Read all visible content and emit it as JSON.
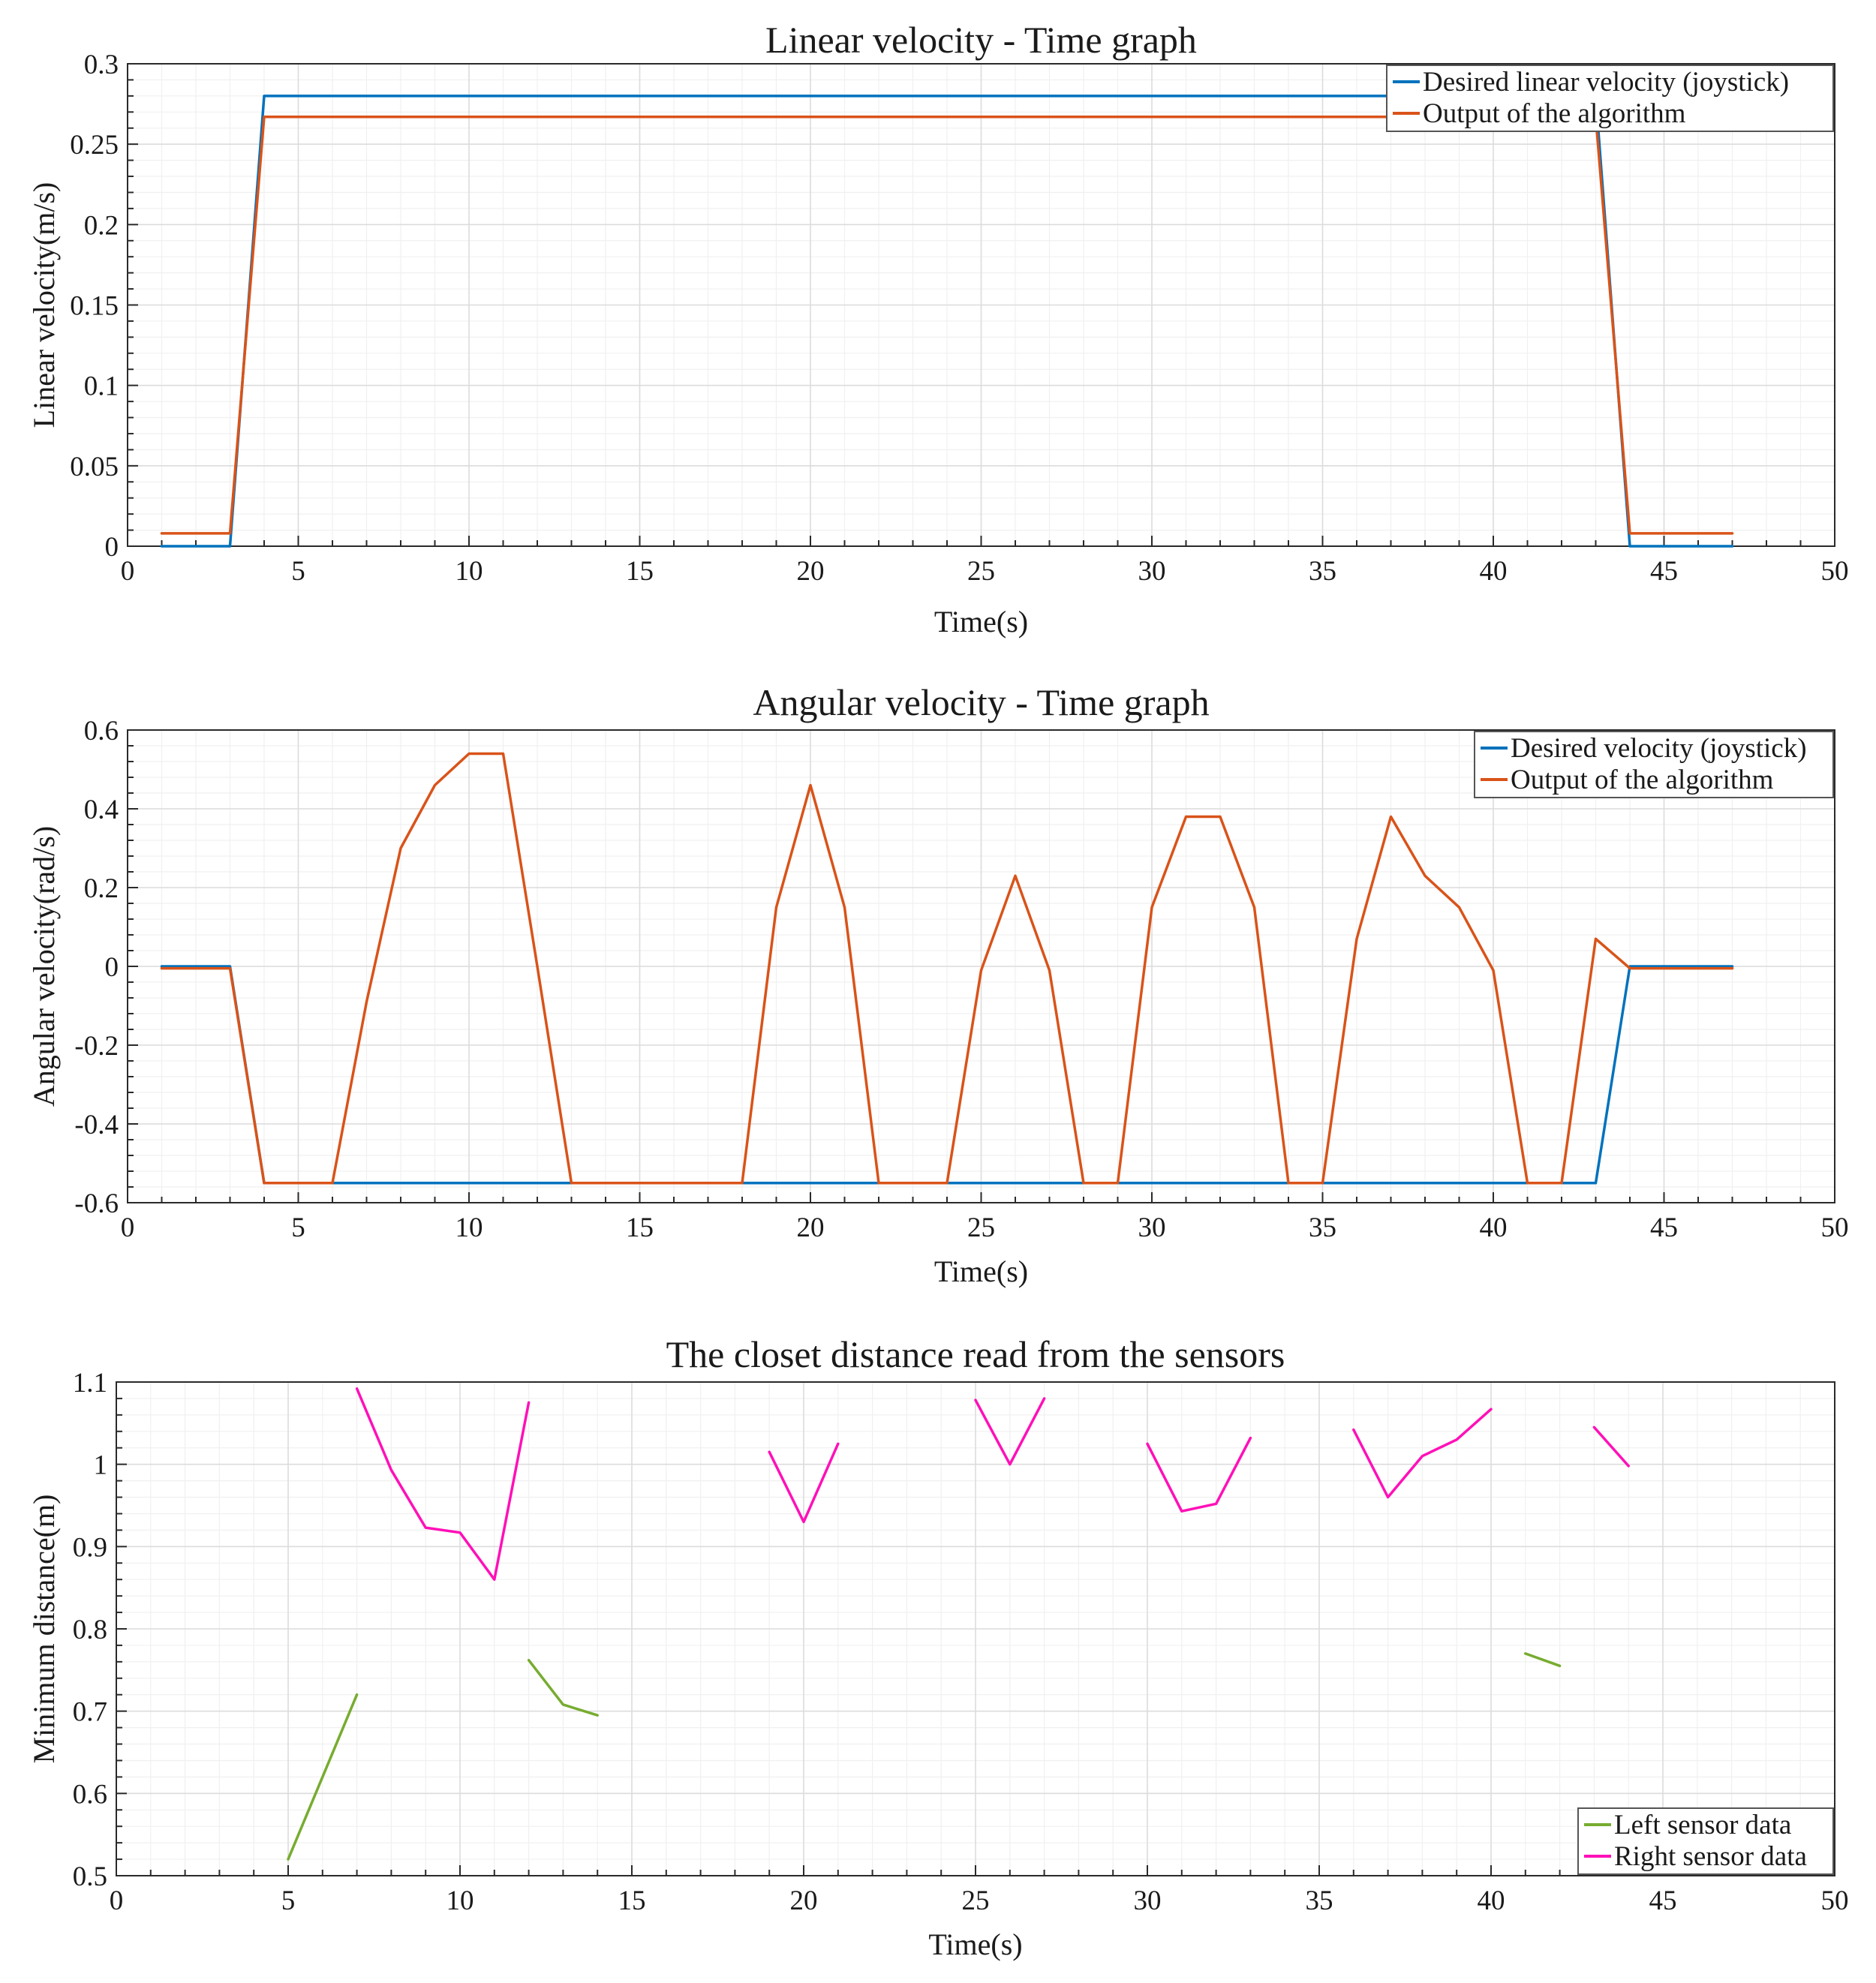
{
  "chart_data": [
    {
      "type": "line",
      "title": "Linear velocity - Time graph",
      "xlabel": "Time(s)",
      "ylabel": "Linear velocity(m/s)",
      "xlim": [
        0,
        50
      ],
      "ylim": [
        0,
        0.3
      ],
      "x_ticks": [
        "0",
        "5",
        "10",
        "15",
        "20",
        "25",
        "30",
        "35",
        "40",
        "45",
        "50"
      ],
      "y_ticks": [
        "0",
        "0.05",
        "0.1",
        "0.15",
        "0.2",
        "0.25",
        "0.3"
      ],
      "grid": true,
      "legend_position": "top-right",
      "series": [
        {
          "name": "Desired linear velocity (joystick)",
          "color": "#0072BD",
          "segments": [
            {
              "x": [
                1,
                3,
                4,
                43,
                44,
                47
              ],
              "y": [
                0,
                0,
                0.28,
                0.28,
                0,
                0
              ]
            }
          ]
        },
        {
          "name": "Output of the algorithm",
          "color": "#D95319",
          "segments": [
            {
              "x": [
                1,
                3,
                4,
                43,
                44,
                47
              ],
              "y": [
                0.008,
                0.008,
                0.267,
                0.267,
                0.008,
                0.008
              ]
            }
          ]
        }
      ]
    },
    {
      "type": "line",
      "title": "Angular velocity - Time graph",
      "xlabel": "Time(s)",
      "ylabel": "Angular velocity(rad/s)",
      "xlim": [
        0,
        50
      ],
      "ylim": [
        -0.6,
        0.6
      ],
      "x_ticks": [
        "0",
        "5",
        "10",
        "15",
        "20",
        "25",
        "30",
        "35",
        "40",
        "45",
        "50"
      ],
      "y_ticks": [
        "-0.6",
        "-0.4",
        "-0.2",
        "0",
        "0.2",
        "0.4",
        "0.6"
      ],
      "grid": true,
      "legend_position": "top-right",
      "series": [
        {
          "name": "Desired velocity (joystick)",
          "color": "#0072BD",
          "segments": [
            {
              "x": [
                1,
                3,
                4,
                43,
                44,
                47
              ],
              "y": [
                0,
                0,
                -0.55,
                -0.55,
                0,
                0
              ]
            }
          ]
        },
        {
          "name": "Output of the algorithm",
          "color": "#D95319",
          "segments": [
            {
              "x": [
                1,
                3,
                4,
                5,
                6,
                7,
                8,
                9,
                10,
                11,
                12,
                13,
                14,
                15,
                16,
                17,
                18,
                19,
                20,
                21,
                22,
                23,
                24,
                25,
                26,
                27,
                28,
                29,
                30,
                31,
                32,
                33,
                34,
                35,
                36,
                37,
                38,
                39,
                40,
                41,
                42,
                43,
                44,
                45,
                46,
                47
              ],
              "y": [
                -0.005,
                -0.005,
                -0.55,
                -0.55,
                -0.55,
                -0.09,
                0.3,
                0.46,
                0.54,
                0.54,
                0.0,
                -0.55,
                -0.55,
                -0.55,
                -0.55,
                -0.55,
                -0.55,
                0.15,
                0.46,
                0.15,
                -0.55,
                -0.55,
                -0.55,
                -0.01,
                0.23,
                -0.01,
                -0.55,
                -0.55,
                0.15,
                0.38,
                0.38,
                0.15,
                -0.55,
                -0.55,
                0.07,
                0.38,
                0.23,
                0.15,
                -0.01,
                -0.55,
                -0.55,
                0.07,
                -0.005,
                -0.005,
                -0.005,
                -0.005
              ]
            }
          ]
        }
      ]
    },
    {
      "type": "line",
      "title": "The closet distance read from the sensors",
      "xlabel": "Time(s)",
      "ylabel": "Minimum distance(m)",
      "xlim": [
        0,
        50
      ],
      "ylim": [
        0.5,
        1.1
      ],
      "x_ticks": [
        "0",
        "5",
        "10",
        "15",
        "20",
        "25",
        "30",
        "35",
        "40",
        "45",
        "50"
      ],
      "y_ticks": [
        "0.5",
        "0.6",
        "0.7",
        "0.8",
        "0.9",
        "1",
        "1.1"
      ],
      "grid": true,
      "legend_position": "bottom-right",
      "series": [
        {
          "name": "Left sensor data",
          "color": "#77AC30",
          "segments": [
            {
              "x": [
                5,
                6,
                7
              ],
              "y": [
                0.52,
                0.62,
                0.72
              ]
            },
            {
              "x": [
                12,
                13,
                14
              ],
              "y": [
                0.762,
                0.708,
                0.695
              ]
            },
            {
              "x": [
                41,
                42
              ],
              "y": [
                0.77,
                0.755
              ]
            }
          ]
        },
        {
          "name": "Right sensor data",
          "color": "#FF10B8",
          "segments": [
            {
              "x": [
                7,
                8,
                9,
                10,
                11,
                12
              ],
              "y": [
                1.092,
                0.993,
                0.923,
                0.917,
                0.86,
                1.075
              ]
            },
            {
              "x": [
                19,
                20,
                21
              ],
              "y": [
                1.015,
                0.93,
                1.025
              ]
            },
            {
              "x": [
                25,
                26,
                27
              ],
              "y": [
                1.078,
                1.0,
                1.08
              ]
            },
            {
              "x": [
                30,
                31,
                32,
                33
              ],
              "y": [
                1.025,
                0.943,
                0.952,
                1.032
              ]
            },
            {
              "x": [
                36,
                37,
                38,
                39,
                40
              ],
              "y": [
                1.042,
                0.96,
                1.01,
                1.03,
                1.067
              ]
            },
            {
              "x": [
                43,
                44
              ],
              "y": [
                1.045,
                0.998
              ]
            }
          ]
        }
      ]
    }
  ]
}
